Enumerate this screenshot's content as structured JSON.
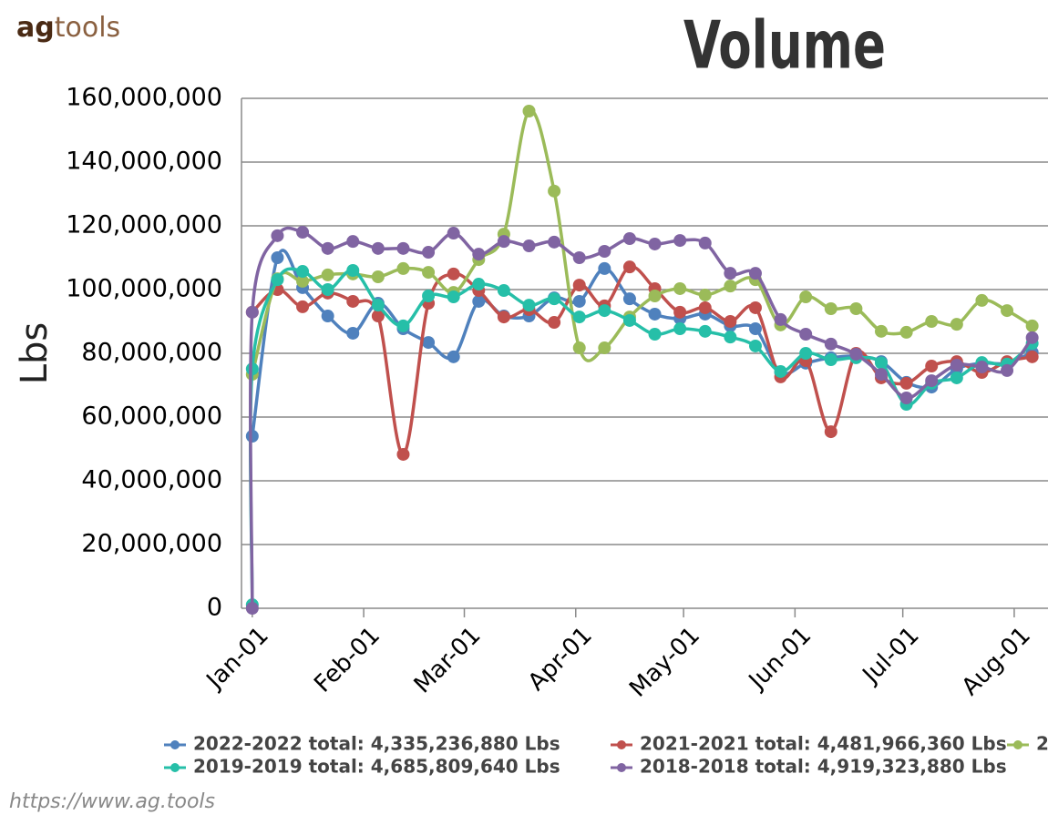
{
  "header": {
    "logo_left": "ag",
    "logo_right": "tools"
  },
  "chart_data": {
    "type": "line",
    "title": "Volume",
    "y_label": "Lbs",
    "xlim": [
      -3,
      221.4
    ],
    "xticks": [
      {
        "value": 0,
        "label": "Jan-01"
      },
      {
        "value": 31,
        "label": "Feb-01"
      },
      {
        "value": 59,
        "label": "Mar-01"
      },
      {
        "value": 90,
        "label": "Apr-01"
      },
      {
        "value": 120,
        "label": "May-01"
      },
      {
        "value": 151,
        "label": "Jun-01"
      },
      {
        "value": 181,
        "label": "Jul-01"
      },
      {
        "value": 212,
        "label": "Aug-01"
      }
    ],
    "ylim": [
      0,
      160000000
    ],
    "yticks": [
      {
        "value": 0,
        "label": "0"
      },
      {
        "value": 20000000,
        "label": "20,000,000"
      },
      {
        "value": 40000000,
        "label": "40,000,000"
      },
      {
        "value": 60000000,
        "label": "60,000,000"
      },
      {
        "value": 80000000,
        "label": "80,000,000"
      },
      {
        "value": 100000000,
        "label": "100,000,000"
      },
      {
        "value": 120000000,
        "label": "120,000,000"
      },
      {
        "value": 140000000,
        "label": "140,000,000"
      },
      {
        "value": 160000000,
        "label": "160,000,000"
      }
    ],
    "grid": true,
    "legend": "bottom",
    "series": [
      {
        "name": "2022-2022 total: 4,335,236,880 Lbs",
        "color": "#4f81bd",
        "x": [
          0,
          7,
          14,
          21,
          28,
          35,
          42,
          49,
          56,
          63,
          70,
          77,
          84,
          91,
          98,
          105,
          112,
          119,
          126,
          133,
          140,
          147,
          154,
          161,
          168,
          175,
          182,
          189,
          196,
          203,
          210,
          217
        ],
        "values": [
          54000000,
          110000000,
          100600000,
          91700000,
          86300000,
          95700000,
          87700000,
          83400000,
          78900000,
          96300000,
          91700000,
          91700000,
          97400000,
          96300000,
          106600000,
          97100000,
          92300000,
          90900000,
          92300000,
          88600000,
          87700000,
          74000000,
          76900000,
          78600000,
          79100000,
          77400000,
          70900000,
          69400000,
          75100000,
          76900000,
          76900000,
          80300000
        ]
      },
      {
        "name": "2021-2021 total: 4,481,966,360 Lbs",
        "color": "#c0504d",
        "x": [
          0,
          7,
          14,
          21,
          28,
          35,
          42,
          49,
          56,
          63,
          70,
          77,
          84,
          91,
          98,
          105,
          112,
          119,
          126,
          133,
          140,
          147,
          154,
          161,
          168,
          175,
          182,
          189,
          196,
          203,
          210,
          217
        ],
        "values": [
          92900000,
          100000000,
          94600000,
          98900000,
          96300000,
          91700000,
          48300000,
          95700000,
          104900000,
          99700000,
          91400000,
          93700000,
          89700000,
          101400000,
          94900000,
          107100000,
          100300000,
          92900000,
          94300000,
          90000000,
          94300000,
          72600000,
          77700000,
          55400000,
          80000000,
          72300000,
          70600000,
          76000000,
          77400000,
          74000000,
          77400000,
          78900000
        ]
      },
      {
        "name": "2",
        "color": "#9bbb59",
        "x": [
          0,
          7,
          14,
          21,
          28,
          35,
          42,
          49,
          56,
          63,
          70,
          77,
          84,
          91,
          98,
          105,
          112,
          119,
          126,
          133,
          140,
          147,
          154,
          161,
          168,
          175,
          182,
          189,
          196,
          203,
          210,
          217
        ],
        "values": [
          73400000,
          103400000,
          102600000,
          104600000,
          104900000,
          104000000,
          106600000,
          105400000,
          99100000,
          109400000,
          117400000,
          156000000,
          130900000,
          81700000,
          81700000,
          91400000,
          98000000,
          100300000,
          98300000,
          101100000,
          103100000,
          88900000,
          97700000,
          94000000,
          94000000,
          86900000,
          86600000,
          90000000,
          89100000,
          96600000,
          93400000,
          88600000
        ]
      },
      {
        "name": "2019-2019 total: 4,685,809,640 Lbs",
        "color": "#26bfa8",
        "x": [
          0,
          0,
          7,
          14,
          21,
          28,
          35,
          42,
          49,
          56,
          63,
          70,
          77,
          84,
          91,
          98,
          105,
          112,
          119,
          126,
          133,
          140,
          147,
          154,
          161,
          168,
          175,
          182,
          189,
          196,
          203,
          210,
          217
        ],
        "values": [
          1100000,
          75100000,
          103100000,
          105700000,
          100000000,
          106000000,
          95100000,
          88600000,
          98000000,
          97700000,
          101700000,
          99700000,
          95100000,
          97100000,
          91400000,
          93400000,
          90300000,
          86000000,
          87700000,
          86900000,
          85100000,
          82300000,
          74300000,
          80000000,
          78000000,
          78600000,
          77000000,
          64000000,
          70600000,
          72300000,
          77100000,
          76600000,
          83100000
        ]
      },
      {
        "name": "2018-2018 total: 4,919,323,880 Lbs",
        "color": "#8064a2",
        "x": [
          0,
          0,
          7,
          14,
          21,
          28,
          35,
          42,
          49,
          56,
          63,
          70,
          77,
          84,
          91,
          98,
          105,
          112,
          119,
          126,
          133,
          140,
          147,
          154,
          161,
          168,
          175,
          182,
          189,
          196,
          203,
          210,
          217
        ],
        "values": [
          0,
          92900000,
          116900000,
          118000000,
          112900000,
          115100000,
          112900000,
          112900000,
          111700000,
          117700000,
          111100000,
          115100000,
          113700000,
          114900000,
          110000000,
          112000000,
          116000000,
          114300000,
          115400000,
          114600000,
          105100000,
          105100000,
          90600000,
          86000000,
          82900000,
          79700000,
          73400000,
          66000000,
          71400000,
          76300000,
          75700000,
          74600000,
          84900000
        ]
      }
    ]
  },
  "footer": {
    "url": "https://www.ag.tools"
  }
}
